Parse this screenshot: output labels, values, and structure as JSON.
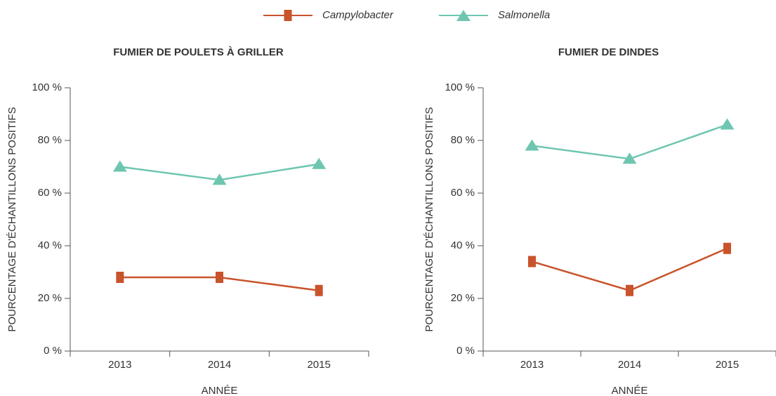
{
  "legend_series": "chart_data.0.series",
  "chart_data": [
    {
      "type": "line",
      "title": "FUMIER DE POULETS À GRILLER",
      "x_label": "ANNÉE",
      "y_label": "POURCENTAGE  D'ÉCHANTILLONS POSITIFS",
      "categories": [
        "2013",
        "2014",
        "2015"
      ],
      "series": [
        {
          "name": "Campylobacter",
          "color": "#c9532b",
          "marker": "square",
          "values": [
            28,
            28,
            23
          ]
        },
        {
          "name": "Salmonella",
          "color": "#6ec6b1",
          "marker": "triangle",
          "values": [
            70,
            65,
            71
          ]
        }
      ],
      "ylim": [
        0,
        100
      ],
      "yticks": [
        {
          "value": 0,
          "label": "0 %"
        },
        {
          "value": 20,
          "label": "20 %"
        },
        {
          "value": 40,
          "label": "40 %"
        },
        {
          "value": 60,
          "label": "60 %"
        },
        {
          "value": 80,
          "label": "80 %"
        },
        {
          "value": 100,
          "label": "100 %"
        }
      ]
    },
    {
      "type": "line",
      "title": "FUMIER DE DINDES",
      "x_label": "ANNÉE",
      "y_label": "POURCENTAGE  D'ÉCHANTILLONS POSITIFS",
      "categories": [
        "2013",
        "2014",
        "2015"
      ],
      "series": [
        {
          "color": "#c9532b",
          "marker": "square",
          "values": [
            34,
            23,
            39
          ]
        },
        {
          "color": "#6ec6b1",
          "marker": "triangle",
          "values": [
            78,
            73,
            86
          ]
        }
      ],
      "ylim": [
        0,
        100
      ],
      "yticks": [
        {
          "value": 0,
          "label": "0 %"
        },
        {
          "value": 20,
          "label": "20 %"
        },
        {
          "value": 40,
          "label": "40 %"
        },
        {
          "value": 60,
          "label": "60 %"
        },
        {
          "value": 80,
          "label": "80 %"
        },
        {
          "value": 100,
          "label": "100 %"
        }
      ]
    }
  ]
}
